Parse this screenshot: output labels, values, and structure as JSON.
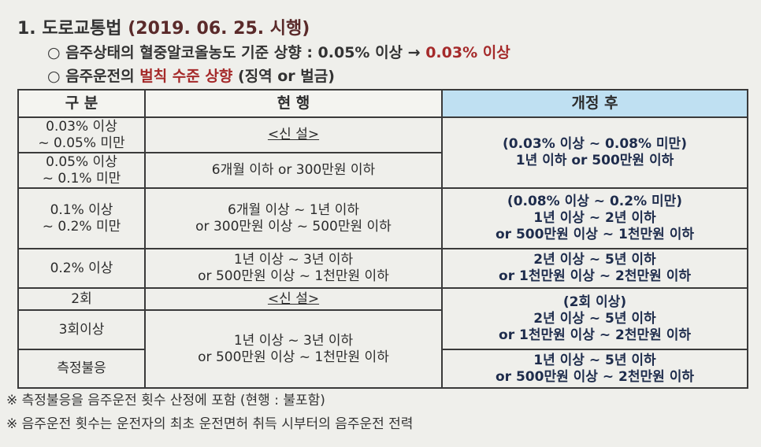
{
  "title": {
    "number": "1. 도로교통법",
    "date": "(2019. 06. 25. 시행)"
  },
  "bullets": [
    [
      "○ 음주상태의 혈중알코올농도 기준 상향 : 0.05% 이상 →",
      "0.03% 이상"
    ],
    [
      "○ 음주운전의",
      "벌칙 수준 상향",
      "(징역 or 벌금)"
    ]
  ],
  "table": {
    "header": [
      "구 분",
      "현 행",
      "개정 후"
    ],
    "labels": [
      [
        "0.03% 이상",
        "~ 0.05% 미만"
      ],
      [
        "0.05% 이상",
        "~ 0.1% 미만"
      ],
      [
        "0.1% 이상",
        "~ 0.2% 미만"
      ],
      [
        "0.2% 이상"
      ],
      [
        "2회"
      ],
      [
        "3회이상"
      ],
      [
        "측정불응"
      ]
    ],
    "current": [
      [
        "<신 설>"
      ],
      [
        "6개월 이하 or 300만원 이하"
      ],
      [
        "6개월 이상 ~ 1년 이하",
        "or 300만원 이상 ~ 500만원 이하"
      ],
      [
        "1년 이상 ~ 3년 이하",
        "or 500만원 이상 ~ 1천만원 이하"
      ],
      [
        "<신 설>"
      ],
      [
        "1년 이상 ~ 3년 이하",
        "or 500만원 이상 ~ 1천만원 이하"
      ]
    ],
    "revised": [
      [
        "(0.03% 이상 ~ 0.08% 미만)",
        "1년 이하 or 500만원 이하"
      ],
      [
        "(0.08% 이상 ~ 0.2% 미만)",
        "1년 이상 ~ 2년 이하",
        "or 500만원 이상 ~ 1천만원 이하"
      ],
      [
        "2년 이상 ~ 5년 이하",
        "or 1천만원 이상 ~ 2천만원 이하"
      ],
      [
        "(2회 이상)",
        "2년 이상 ~ 5년 이하",
        "or 1천만원 이상 ~ 2천만원 이하"
      ],
      [
        "1년 이상 ~ 5년 이하",
        "or 500만원 이상 ~ 2천만원 이하"
      ]
    ]
  },
  "notes": [
    "※ 측정불응을 음주운전 횟수 산정에 포함 (현행 : 불포함)",
    "※ 음주운전 횟수는 운전자의 최초 운전면허 취득 시부터의 음주운전 전력"
  ]
}
